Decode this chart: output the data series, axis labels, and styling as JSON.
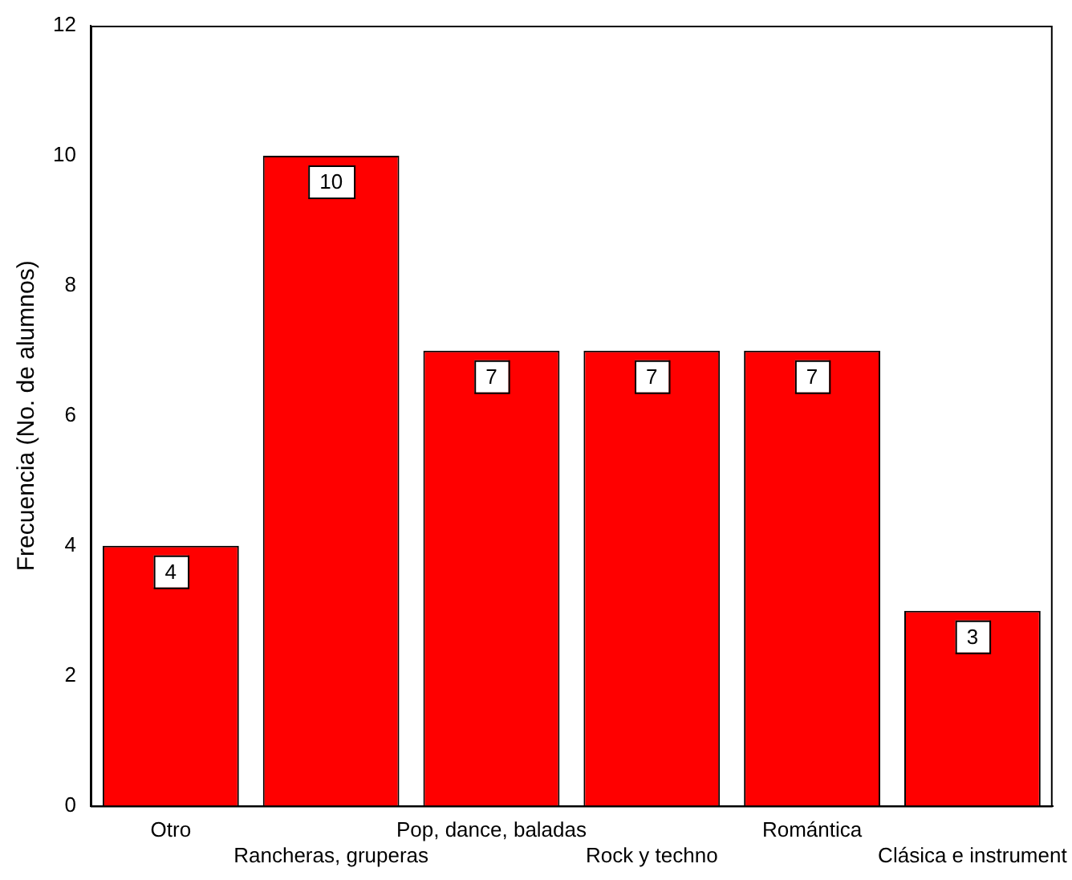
{
  "chart_data": {
    "type": "bar",
    "ylabel": "Frecuencia (No. de alumnos)",
    "categories": [
      "Otro",
      "Rancheras, gruperas",
      "Pop, dance, baladas",
      "Rock y techno",
      "Romántica",
      "Clásica e instrument"
    ],
    "values": [
      4,
      10,
      7,
      7,
      7,
      3
    ],
    "color": "#ff0000",
    "ylim": [
      0,
      12
    ],
    "yticks": [
      0,
      2,
      4,
      6,
      8,
      10,
      12
    ],
    "grid": false,
    "legend": false,
    "data_labels": true
  }
}
